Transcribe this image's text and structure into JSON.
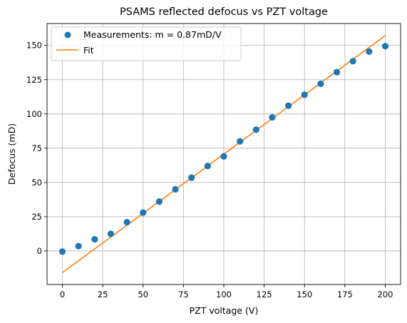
{
  "chart_data": {
    "type": "scatter",
    "title": "PSAMS reflected defocus vs PZT voltage",
    "xlabel": "PZT voltage (V)",
    "ylabel": "Defocus (mD)",
    "xlim": [
      -9.5,
      209.5
    ],
    "ylim": [
      -24.5,
      166
    ],
    "xticks": [
      0,
      25,
      50,
      75,
      100,
      125,
      150,
      175,
      200
    ],
    "yticks": [
      0,
      25,
      50,
      75,
      100,
      125,
      150
    ],
    "grid": true,
    "legend_position": "top-left",
    "series": [
      {
        "name": "Measurements: m = 0.87mD/V",
        "kind": "markers",
        "color": "#1f77b4",
        "x": [
          0,
          10,
          20,
          30,
          40,
          50,
          60,
          70,
          80,
          90,
          100,
          110,
          120,
          130,
          140,
          150,
          160,
          170,
          180,
          190,
          200
        ],
        "y": [
          -0.5,
          3.5,
          8.5,
          12.5,
          21,
          28,
          36,
          45,
          53.5,
          62,
          69,
          80,
          88.5,
          97.5,
          106,
          114,
          122,
          130.5,
          138.5,
          145.5,
          149.5
        ]
      },
      {
        "name": "Fit",
        "kind": "line",
        "color": "#ff7f0e",
        "x": [
          0,
          200
        ],
        "y": [
          -15.8,
          157.2
        ]
      }
    ]
  }
}
